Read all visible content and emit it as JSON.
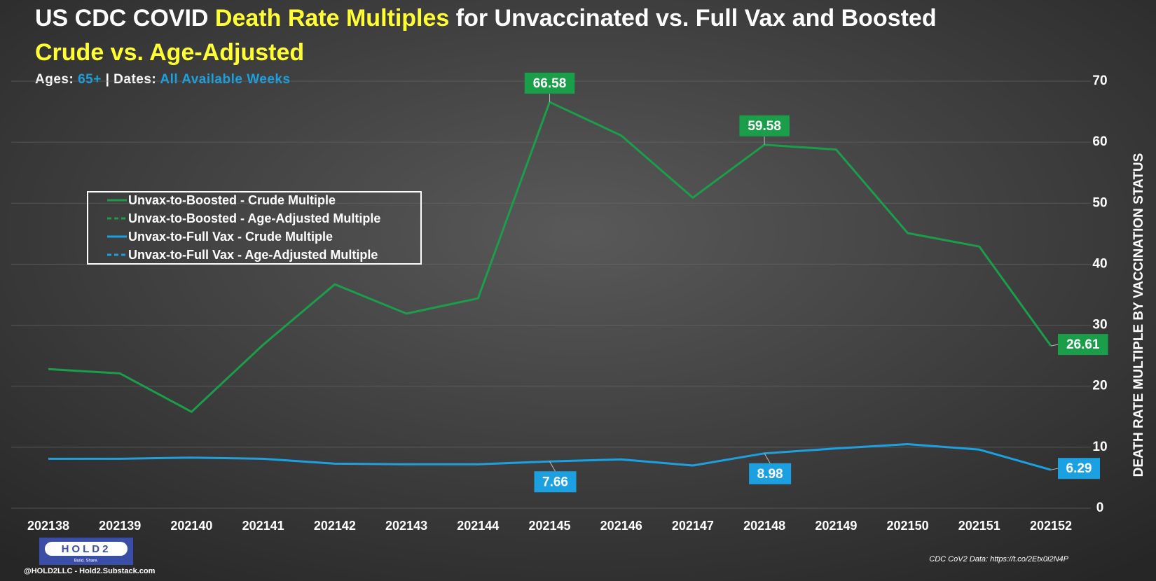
{
  "chart_data": {
    "type": "line",
    "title": [
      {
        "text": "US CDC COVID ",
        "color": "#ffffff"
      },
      {
        "text": "Death Rate Multiples",
        "color": "#ffff33"
      },
      {
        "text": " for Unvaccinated vs. Full Vax and Boosted",
        "color": "#ffffff"
      }
    ],
    "title_line2": {
      "text": "Crude vs. Age-Adjusted",
      "color": "#ffff33"
    },
    "subtitle": [
      {
        "text": "Ages: ",
        "color": "#ffffff"
      },
      {
        "text": "65+",
        "color": "#1ba1e2"
      },
      {
        "text": " | Dates: ",
        "color": "#ffffff"
      },
      {
        "text": "All Available Weeks",
        "color": "#1ba1e2"
      }
    ],
    "categories": [
      "202138",
      "202139",
      "202140",
      "202141",
      "202142",
      "202143",
      "202144",
      "202145",
      "202146",
      "202147",
      "202148",
      "202149",
      "202150",
      "202151",
      "202152"
    ],
    "series": [
      {
        "name": "Unvax-to-Boosted - Crude Multiple",
        "color": "#1a9e4a",
        "dashed": false,
        "values": [
          22.8,
          22.1,
          15.8,
          26.8,
          36.7,
          31.9,
          34.4,
          66.58,
          61.1,
          50.9,
          59.58,
          58.8,
          45.1,
          42.9,
          26.61
        ],
        "value_labels": [
          null,
          null,
          null,
          null,
          null,
          null,
          null,
          "66.58",
          null,
          null,
          "59.58",
          null,
          null,
          null,
          "26.61"
        ]
      },
      {
        "name": "Unvax-to-Boosted - Age-Adjusted Multiple",
        "color": "#1a9e4a",
        "dashed": true,
        "values": [
          null,
          null,
          null,
          null,
          null,
          null,
          null,
          null,
          null,
          null,
          null,
          null,
          null,
          null,
          null
        ]
      },
      {
        "name": "Unvax-to-Full Vax - Crude Multiple",
        "color": "#1ba1e2",
        "dashed": false,
        "values": [
          8.1,
          8.1,
          8.3,
          8.1,
          7.3,
          7.2,
          7.2,
          7.66,
          8.0,
          7.0,
          8.98,
          9.8,
          10.5,
          9.6,
          6.29
        ],
        "value_labels": [
          null,
          null,
          null,
          null,
          null,
          null,
          null,
          "7.66",
          null,
          null,
          "8.98",
          null,
          null,
          null,
          "6.29"
        ]
      },
      {
        "name": "Unvax-to-Full Vax - Age-Adjusted Multiple",
        "color": "#1ba1e2",
        "dashed": true,
        "values": [
          null,
          null,
          null,
          null,
          null,
          null,
          null,
          null,
          null,
          null,
          null,
          null,
          null,
          null,
          null
        ]
      }
    ],
    "ylim": [
      0,
      70
    ],
    "yticks": [
      0,
      10,
      20,
      30,
      40,
      50,
      60,
      70
    ],
    "y_axis_label": "DEATH RATE MULTIPLE BY VACCINATION STATUS",
    "y_axis_side": "right",
    "grid": true,
    "legend": "center left",
    "footer": {
      "logo": "HOLD2",
      "tagline": "Build. Share.",
      "handle": "@HOLD2LLC - Hold2.Substack.com",
      "source": "CDC CoV2 Data: https://t.co/2Etx0i2N4P"
    }
  }
}
